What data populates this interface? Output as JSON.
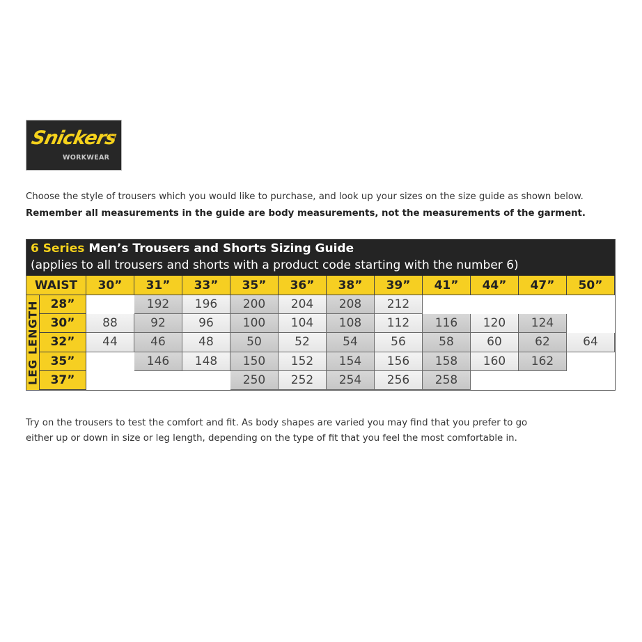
{
  "logo": {
    "brand": "Snickers",
    "sub": "WORKWEAR"
  },
  "intro": "Choose the style of trousers which you would like to purchase, and look up your sizes on the size guide as shown below.",
  "note": "Remember all measurements in the guide are body measurements, not the measurements of the garment.",
  "table": {
    "title_series": "6 Series",
    "title_rest": "Men’s Trousers and Shorts Sizing Guide",
    "subtitle": "(applies to all trousers and shorts with a product code starting with the number 6)",
    "corner_label": "WAIST",
    "row_axis_label": "LEG LENGTH",
    "columns": [
      "30”",
      "31”",
      "33”",
      "35”",
      "36”",
      "38”",
      "39”",
      "41”",
      "44”",
      "47”",
      "50”"
    ],
    "rows": [
      {
        "label": "28”",
        "values": [
          null,
          "192",
          "196",
          "200",
          "204",
          "208",
          "212",
          null,
          null,
          null,
          null
        ]
      },
      {
        "label": "30”",
        "values": [
          "88",
          "92",
          "96",
          "100",
          "104",
          "108",
          "112",
          "116",
          "120",
          "124",
          null
        ]
      },
      {
        "label": "32”",
        "values": [
          "44",
          "46",
          "48",
          "50",
          "52",
          "54",
          "56",
          "58",
          "60",
          "62",
          "64"
        ]
      },
      {
        "label": "35”",
        "values": [
          null,
          "146",
          "148",
          "150",
          "152",
          "154",
          "156",
          "158",
          "160",
          "162",
          null
        ]
      },
      {
        "label": "37”",
        "values": [
          null,
          null,
          null,
          "250",
          "252",
          "254",
          "256",
          "258",
          null,
          null,
          null
        ]
      }
    ],
    "colors": {
      "header_bg": "#242424",
      "accent_yellow": "#f6cf22",
      "cell_light": "#ececec",
      "cell_dark": "#cfcfcf"
    }
  },
  "outro": {
    "line1": "Try on the trousers to test the comfort and fit. As body shapes are varied you may find that you prefer to go",
    "line2": "either up or down in size or leg length, depending on the type of fit that you feel the most comfortable in."
  }
}
